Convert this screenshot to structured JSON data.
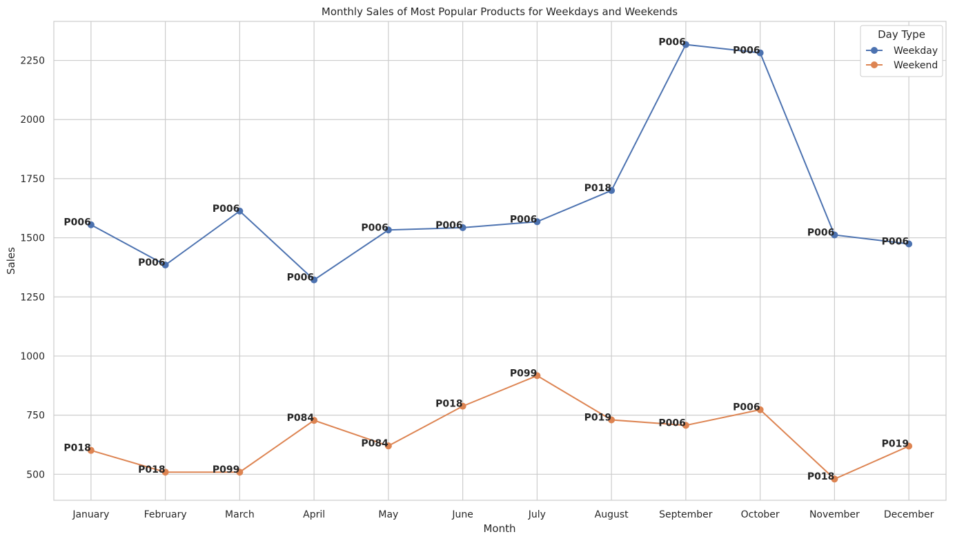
{
  "chart_data": {
    "type": "line",
    "title": "Monthly Sales of Most Popular Products for Weekdays and Weekends",
    "xlabel": "Month",
    "ylabel": "Sales",
    "categories": [
      "January",
      "February",
      "March",
      "April",
      "May",
      "June",
      "July",
      "August",
      "September",
      "October",
      "November",
      "December"
    ],
    "ylim": [
      390,
      2415
    ],
    "yticks": [
      500,
      750,
      1000,
      1250,
      1500,
      1750,
      2000,
      2250
    ],
    "grid": true,
    "legend": {
      "title": "Day Type",
      "placement": "top-right"
    },
    "series": [
      {
        "name": "Weekday",
        "color": "#4c72b0",
        "values": [
          1555,
          1385,
          1613,
          1322,
          1533,
          1543,
          1568,
          1700,
          2317,
          2282,
          1512,
          1474
        ],
        "labels": [
          "P006",
          "P006",
          "P006",
          "P006",
          "P006",
          "P006",
          "P006",
          "P018",
          "P006",
          "P006",
          "P006",
          "P006"
        ]
      },
      {
        "name": "Weekend",
        "color": "#dd8452",
        "values": [
          601,
          509,
          509,
          728,
          620,
          788,
          917,
          730,
          707,
          773,
          480,
          619
        ],
        "labels": [
          "P018",
          "P018",
          "P099",
          "P084",
          "P084",
          "P018",
          "P099",
          "P019",
          "P006",
          "P006",
          "P018",
          "P019"
        ]
      }
    ]
  }
}
